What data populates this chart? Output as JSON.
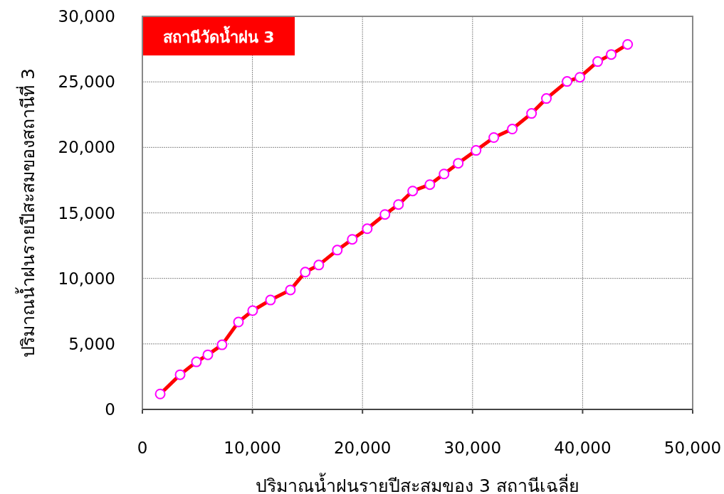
{
  "chart_data": {
    "type": "line",
    "xlabel": "ปริมาณน้ำฝนรายปีสะสมของ 3 สถานีเฉลี่ย",
    "ylabel": "ปริมาณน้ำฝนรายปีสะสมของสถานีที่ 3",
    "annotations": [
      "สถานีวัดน้ำฝน 3"
    ],
    "x": [
      1620,
      3430,
      4910,
      5950,
      7240,
      8730,
      10020,
      11640,
      13450,
      14800,
      16030,
      17710,
      19070,
      20430,
      22040,
      23270,
      24560,
      26120,
      27410,
      28700,
      30320,
      31930,
      33610,
      35360,
      36710,
      38590,
      39750,
      41370,
      42600,
      44090
    ],
    "series": [
      {
        "color": "#ff0000",
        "values": [
          1180,
          2650,
          3630,
          4170,
          4930,
          6670,
          7540,
          8350,
          9120,
          10480,
          11020,
          12160,
          12980,
          13790,
          14880,
          15640,
          16670,
          17160,
          17970,
          18790,
          19770,
          20750,
          21400,
          22590,
          23730,
          25030,
          25350,
          26550,
          27090,
          27860
        ]
      }
    ],
    "marker": "circle",
    "line_style": "solid",
    "grid": true,
    "xlim": [
      0,
      50000
    ],
    "xticks": [
      {
        "value": 0,
        "label": "0"
      },
      {
        "value": 10000,
        "label": "10,000"
      },
      {
        "value": 20000,
        "label": "20,000"
      },
      {
        "value": 30000,
        "label": "30,000"
      },
      {
        "value": 40000,
        "label": "40,000"
      },
      {
        "value": 50000,
        "label": "50,000"
      }
    ],
    "ylim": [
      0,
      30000
    ],
    "yticks": [
      {
        "value": 0,
        "label": "0"
      },
      {
        "value": 5000,
        "label": "5,000"
      },
      {
        "value": 10000,
        "label": "10,000"
      },
      {
        "value": 15000,
        "label": "15,000"
      },
      {
        "value": 20000,
        "label": "20,000"
      },
      {
        "value": 25000,
        "label": "25,000"
      },
      {
        "value": 30000,
        "label": "30,000"
      }
    ]
  }
}
